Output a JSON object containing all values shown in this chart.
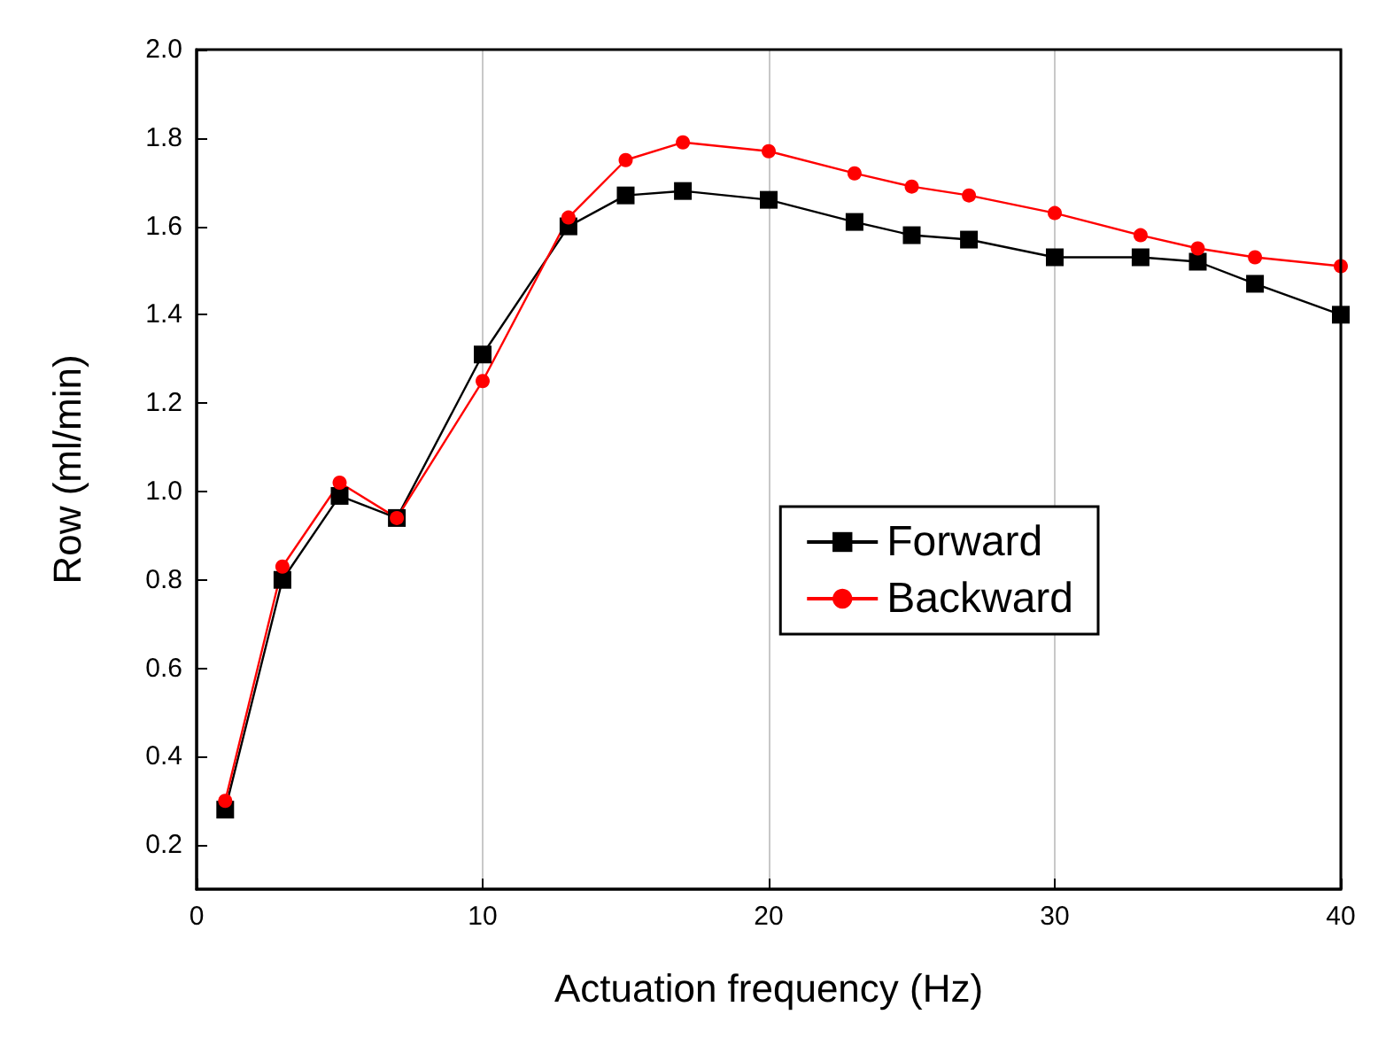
{
  "chart_data": {
    "type": "line",
    "xlabel": "Actuation frequency (Hz)",
    "ylabel": "Row (ml/min)",
    "xlim": [
      0,
      40
    ],
    "xticks": [
      0,
      10,
      20,
      30,
      40
    ],
    "ylim": [
      0.1,
      2.0
    ],
    "yticks": [
      0.2,
      0.4,
      0.6,
      0.8,
      {
        "value": 1,
        "label": "1.0"
      },
      1.2,
      1.4,
      1.6,
      1.8,
      {
        "value": 2,
        "label": "2.0"
      }
    ],
    "grid": "x",
    "legend": "right",
    "series": [
      {
        "name": "Forward",
        "color": "#000000",
        "marker": "square",
        "x": [
          1,
          3,
          5,
          7,
          10,
          13,
          15,
          17,
          20,
          23,
          25,
          27,
          30,
          33,
          35,
          37,
          40
        ],
        "values": [
          0.28,
          0.8,
          0.99,
          0.94,
          1.31,
          1.6,
          1.67,
          1.68,
          1.66,
          1.61,
          1.58,
          1.57,
          1.53,
          1.53,
          1.52,
          1.47,
          1.4
        ]
      },
      {
        "name": "Backward",
        "color": "#ff0000",
        "marker": "circle",
        "x": [
          1,
          3,
          5,
          7,
          10,
          13,
          15,
          17,
          20,
          23,
          25,
          27,
          30,
          33,
          35,
          37,
          40
        ],
        "values": [
          0.3,
          0.83,
          1.02,
          0.94,
          1.25,
          1.62,
          1.75,
          1.79,
          1.77,
          1.72,
          1.69,
          1.67,
          1.63,
          1.58,
          1.55,
          1.53,
          1.51
        ]
      }
    ]
  }
}
